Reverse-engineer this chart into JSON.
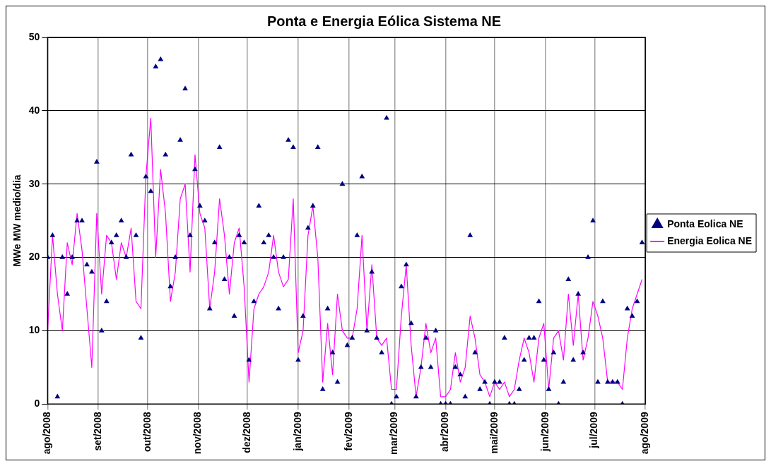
{
  "chart_data": {
    "type": "line",
    "title": "Ponta e Energia Eólica Sistema NE",
    "ylabel": "MWe MW medio/dia",
    "x": [
      "2008-08-01",
      "2008-08-04",
      "2008-08-07",
      "2008-08-10",
      "2008-08-13",
      "2008-08-16",
      "2008-08-19",
      "2008-08-22",
      "2008-08-25",
      "2008-08-28",
      "2008-08-31",
      "2008-09-03",
      "2008-09-06",
      "2008-09-09",
      "2008-09-12",
      "2008-09-15",
      "2008-09-18",
      "2008-09-21",
      "2008-09-24",
      "2008-09-27",
      "2008-09-30",
      "2008-10-03",
      "2008-10-06",
      "2008-10-09",
      "2008-10-12",
      "2008-10-15",
      "2008-10-18",
      "2008-10-21",
      "2008-10-24",
      "2008-10-27",
      "2008-10-30",
      "2008-11-02",
      "2008-11-05",
      "2008-11-08",
      "2008-11-11",
      "2008-11-14",
      "2008-11-17",
      "2008-11-20",
      "2008-11-23",
      "2008-11-26",
      "2008-11-29",
      "2008-12-02",
      "2008-12-05",
      "2008-12-08",
      "2008-12-11",
      "2008-12-14",
      "2008-12-17",
      "2008-12-20",
      "2008-12-23",
      "2008-12-26",
      "2008-12-29",
      "2009-01-01",
      "2009-01-04",
      "2009-01-07",
      "2009-01-10",
      "2009-01-13",
      "2009-01-16",
      "2009-01-19",
      "2009-01-22",
      "2009-01-25",
      "2009-01-28",
      "2009-01-31",
      "2009-02-03",
      "2009-02-06",
      "2009-02-09",
      "2009-02-12",
      "2009-02-15",
      "2009-02-18",
      "2009-02-21",
      "2009-02-24",
      "2009-02-27",
      "2009-03-02",
      "2009-03-05",
      "2009-03-08",
      "2009-03-11",
      "2009-03-14",
      "2009-03-17",
      "2009-03-20",
      "2009-03-23",
      "2009-03-26",
      "2009-03-29",
      "2009-04-01",
      "2009-04-04",
      "2009-04-07",
      "2009-04-10",
      "2009-04-13",
      "2009-04-16",
      "2009-04-19",
      "2009-04-22",
      "2009-04-25",
      "2009-04-28",
      "2009-05-01",
      "2009-05-04",
      "2009-05-07",
      "2009-05-10",
      "2009-05-13",
      "2009-05-16",
      "2009-05-19",
      "2009-05-22",
      "2009-05-25",
      "2009-05-28",
      "2009-05-31",
      "2009-06-03",
      "2009-06-06",
      "2009-06-09",
      "2009-06-12",
      "2009-06-15",
      "2009-06-18",
      "2009-06-21",
      "2009-06-24",
      "2009-06-27",
      "2009-06-30",
      "2009-07-03",
      "2009-07-06",
      "2009-07-09",
      "2009-07-12",
      "2009-07-15",
      "2009-07-18",
      "2009-07-21",
      "2009-07-24",
      "2009-07-27",
      "2009-07-30"
    ],
    "series": [
      {
        "name": "Ponta Eolica NE",
        "type": "scatter",
        "marker": "triangle",
        "color": "#000080",
        "values": [
          20,
          23,
          1,
          20,
          15,
          20,
          25,
          25,
          19,
          18,
          33,
          10,
          14,
          22,
          23,
          25,
          20,
          34,
          23,
          9,
          31,
          29,
          46,
          47,
          34,
          16,
          20,
          36,
          43,
          23,
          32,
          27,
          25,
          13,
          22,
          35,
          17,
          20,
          12,
          23,
          22,
          6,
          14,
          27,
          22,
          23,
          20,
          13,
          20,
          36,
          35,
          6,
          12,
          24,
          27,
          35,
          2,
          13,
          7,
          3,
          30,
          8,
          9,
          23,
          31,
          10,
          18,
          9,
          7,
          39,
          0,
          1,
          16,
          19,
          11,
          1,
          5,
          9,
          5,
          10,
          0,
          0,
          0,
          5,
          4,
          1,
          23,
          7,
          2,
          3,
          0,
          3,
          3,
          9,
          0,
          0,
          2,
          6,
          9,
          9,
          14,
          6,
          2,
          7,
          0,
          3,
          17,
          6,
          15,
          7,
          20,
          25,
          3,
          14,
          3,
          3,
          3,
          0,
          13,
          12,
          14,
          22
        ]
      },
      {
        "name": "Energia Eolica NE",
        "type": "line",
        "line_style": "solid",
        "color": "#ff00ff",
        "values": [
          10,
          23,
          15,
          10,
          22,
          19,
          26,
          21,
          13,
          5,
          26,
          15,
          23,
          22,
          17,
          22,
          20,
          24,
          14,
          13,
          31,
          39,
          20,
          32,
          26,
          14,
          18,
          28,
          30,
          18,
          34,
          26,
          24,
          13,
          18,
          28,
          23,
          15,
          22,
          24,
          16,
          3,
          13,
          15,
          16,
          18,
          23,
          18,
          16,
          17,
          28,
          7,
          10,
          23,
          27,
          20,
          3,
          11,
          4,
          15,
          10,
          9,
          9,
          13,
          23,
          10,
          19,
          9,
          8,
          9,
          2,
          2,
          12,
          19,
          8,
          1,
          5,
          11,
          7,
          9,
          1,
          1,
          2,
          7,
          3,
          5,
          12,
          9,
          4,
          3,
          1,
          3,
          2,
          3,
          1,
          2,
          6,
          9,
          7,
          3,
          9,
          11,
          2,
          9,
          10,
          6,
          15,
          8,
          15,
          6,
          9,
          14,
          12,
          9,
          3,
          3,
          3,
          2,
          9,
          13,
          15,
          17
        ]
      }
    ],
    "xlim": [
      "2008-08-01",
      "2009-08-01"
    ],
    "xticks": [
      {
        "value": "2008-08-01",
        "label": "ago/2008"
      },
      {
        "value": "2008-09-01",
        "label": "set/2008"
      },
      {
        "value": "2008-10-01",
        "label": "out/2008"
      },
      {
        "value": "2008-11-01",
        "label": "nov/2008"
      },
      {
        "value": "2008-12-01",
        "label": "dez/2008"
      },
      {
        "value": "2009-01-01",
        "label": "jan/2009"
      },
      {
        "value": "2009-02-01",
        "label": "fev/2009"
      },
      {
        "value": "2009-03-01",
        "label": "mar/2009"
      },
      {
        "value": "2009-04-01",
        "label": "abr/2009"
      },
      {
        "value": "2009-05-01",
        "label": "mai/2009"
      },
      {
        "value": "2009-06-01",
        "label": "jun/2009"
      },
      {
        "value": "2009-07-01",
        "label": "jul/2009"
      },
      {
        "value": "2009-08-01",
        "label": "ago/2009"
      }
    ],
    "ylim": [
      0,
      50
    ],
    "yticks": [
      0,
      10,
      20,
      30,
      40,
      50
    ],
    "grid": true,
    "legend": "right"
  }
}
